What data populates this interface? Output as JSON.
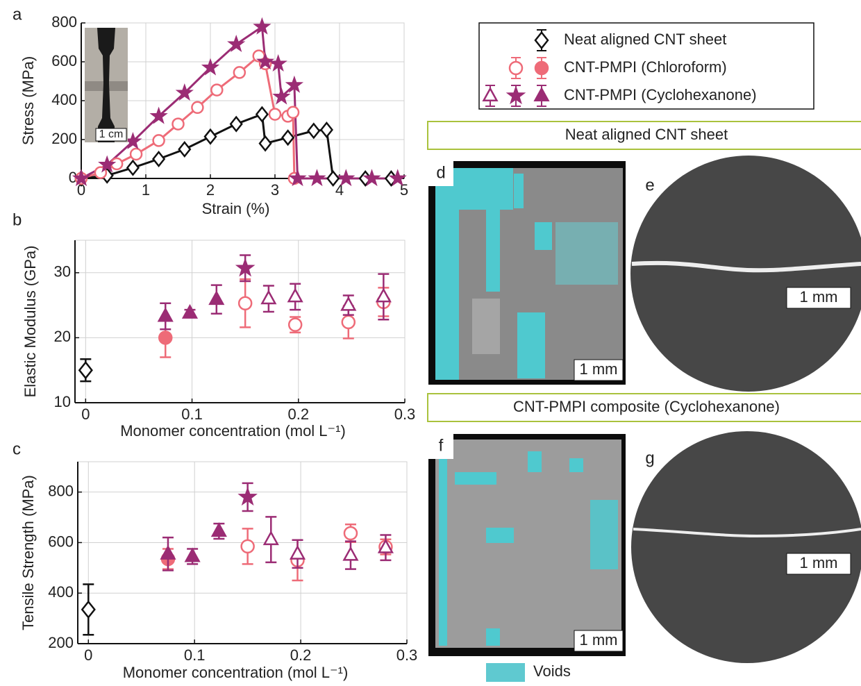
{
  "chart_data": [
    {
      "type": "line",
      "panel_label": "a",
      "x_label": "Strain (%)",
      "y_label": "Stress (MPa)",
      "inset_label": "1 cm",
      "xlim": [
        0,
        5
      ],
      "xticks": [
        0,
        1,
        2,
        3,
        4,
        5
      ],
      "ylim": [
        0,
        800
      ],
      "yticks": [
        0,
        200,
        400,
        600,
        800
      ],
      "grid": true,
      "series": [
        {
          "name": "Neat aligned CNT sheet",
          "color": "#111111",
          "marker": "diamond",
          "filled": false,
          "legend_markers": [
            {
              "marker": "diamond",
              "filled": false
            }
          ],
          "x": [
            0,
            0.4,
            0.8,
            1.2,
            1.6,
            2.0,
            2.4,
            2.8,
            2.85,
            3.2,
            3.6,
            3.8,
            3.9,
            4.4,
            4.8
          ],
          "values": [
            0,
            15,
            55,
            100,
            150,
            215,
            280,
            330,
            180,
            210,
            245,
            250,
            0,
            0,
            0
          ]
        },
        {
          "name": "CNT-PMPI (Chloroform)",
          "color": "#ee6b78",
          "marker": "circle",
          "filled": false,
          "legend_markers": [
            {
              "marker": "circle",
              "filled": false
            },
            {
              "marker": "circle",
              "filled": true
            }
          ],
          "x": [
            0,
            0.3,
            0.55,
            0.85,
            1.2,
            1.5,
            1.8,
            2.1,
            2.45,
            2.75,
            2.85,
            3.0,
            3.2,
            3.28,
            3.3
          ],
          "values": [
            0,
            30,
            75,
            125,
            195,
            280,
            365,
            455,
            545,
            630,
            590,
            330,
            320,
            340,
            0
          ]
        },
        {
          "name": "CNT-PMPI (Cyclohexanone)",
          "color": "#9b2c74",
          "marker": "star",
          "filled": true,
          "legend_markers": [
            {
              "marker": "triangle",
              "filled": false
            },
            {
              "marker": "star",
              "filled": true
            },
            {
              "marker": "triangle",
              "filled": true
            }
          ],
          "x": [
            0,
            0.4,
            0.8,
            1.2,
            1.6,
            2.0,
            2.4,
            2.8,
            2.85,
            3.05,
            3.1,
            3.3,
            3.35,
            3.65,
            4.1,
            4.5,
            4.9
          ],
          "values": [
            0,
            70,
            190,
            320,
            440,
            570,
            690,
            780,
            600,
            590,
            420,
            480,
            0,
            0,
            0,
            0,
            0
          ]
        }
      ]
    },
    {
      "type": "scatter",
      "panel_label": "b",
      "x_label": "Monomer concentration (mol L⁻¹)",
      "y_label": "Elastic Modulus (GPa)",
      "xlim": [
        -0.01,
        0.3
      ],
      "xticks": [
        0,
        0.1,
        0.2,
        0.3
      ],
      "ylim": [
        10,
        35
      ],
      "yticks": [
        10,
        20,
        30
      ],
      "grid": true,
      "series": [
        {
          "color": "#111111",
          "marker": "diamond",
          "filled": false,
          "x": [
            0
          ],
          "values": [
            15
          ],
          "errors": [
            1.7
          ]
        },
        {
          "color": "#ee6b78",
          "marker": "circle",
          "filled": false,
          "x": [
            0.15,
            0.197,
            0.247,
            0.28
          ],
          "values": [
            25.3,
            22,
            22.4,
            25.5
          ],
          "errors": [
            3.7,
            1.2,
            2.5,
            2.2
          ]
        },
        {
          "color": "#ee6b78",
          "marker": "circle",
          "filled": true,
          "x": [
            0.075
          ],
          "values": [
            20
          ],
          "errors": [
            3
          ]
        },
        {
          "color": "#9b2c74",
          "marker": "triangle",
          "filled": false,
          "x": [
            0.172,
            0.197,
            0.247,
            0.28
          ],
          "values": [
            26,
            26.3,
            25,
            26.3
          ],
          "errors": [
            2,
            2,
            1.5,
            3.5
          ]
        },
        {
          "color": "#9b2c74",
          "marker": "star",
          "filled": true,
          "x": [
            0.15
          ],
          "values": [
            30.7
          ],
          "errors": [
            2
          ]
        },
        {
          "color": "#9b2c74",
          "marker": "triangle",
          "filled": true,
          "x": [
            0.075,
            0.098,
            0.123
          ],
          "values": [
            23.3,
            23.8,
            25.9
          ],
          "errors": [
            2,
            0.5,
            2.2
          ]
        }
      ]
    },
    {
      "type": "scatter",
      "panel_label": "c",
      "x_label": "Monomer concentration (mol L⁻¹)",
      "y_label": "Tensile Strength (MPa)",
      "xlim": [
        -0.01,
        0.3
      ],
      "xticks": [
        0,
        0.1,
        0.2,
        0.3
      ],
      "ylim": [
        200,
        920
      ],
      "yticks": [
        200,
        400,
        600,
        800
      ],
      "grid": true,
      "series": [
        {
          "color": "#111111",
          "marker": "diamond",
          "filled": false,
          "x": [
            0
          ],
          "values": [
            335
          ],
          "errors": [
            100
          ]
        },
        {
          "color": "#ee6b78",
          "marker": "circle",
          "filled": false,
          "x": [
            0.15,
            0.197,
            0.247,
            0.28
          ],
          "values": [
            585,
            530,
            637,
            583
          ],
          "errors": [
            70,
            80,
            35,
            30
          ]
        },
        {
          "color": "#ee6b78",
          "marker": "circle",
          "filled": true,
          "x": [
            0.075
          ],
          "values": [
            535
          ],
          "errors": [
            40
          ]
        },
        {
          "color": "#9b2c74",
          "marker": "triangle",
          "filled": false,
          "x": [
            0.172,
            0.197,
            0.247,
            0.28
          ],
          "values": [
            612,
            555,
            550,
            580
          ],
          "errors": [
            90,
            55,
            55,
            50
          ]
        },
        {
          "color": "#9b2c74",
          "marker": "star",
          "filled": true,
          "x": [
            0.15
          ],
          "values": [
            780
          ],
          "errors": [
            55
          ]
        },
        {
          "color": "#9b2c74",
          "marker": "triangle",
          "filled": true,
          "x": [
            0.075,
            0.098,
            0.123
          ],
          "values": [
            555,
            545,
            645
          ],
          "errors": [
            65,
            30,
            30
          ]
        }
      ]
    }
  ],
  "images": {
    "section_titles": [
      "Neat aligned CNT sheet",
      "CNT-PMPI composite (Cyclohexanone)"
    ],
    "panels": [
      {
        "label": "d",
        "scale_bar": "1 mm"
      },
      {
        "label": "e",
        "scale_bar": "1 mm"
      },
      {
        "label": "f",
        "scale_bar": "1 mm"
      },
      {
        "label": "g",
        "scale_bar": "1 mm"
      }
    ],
    "voids_label": "Voids"
  }
}
